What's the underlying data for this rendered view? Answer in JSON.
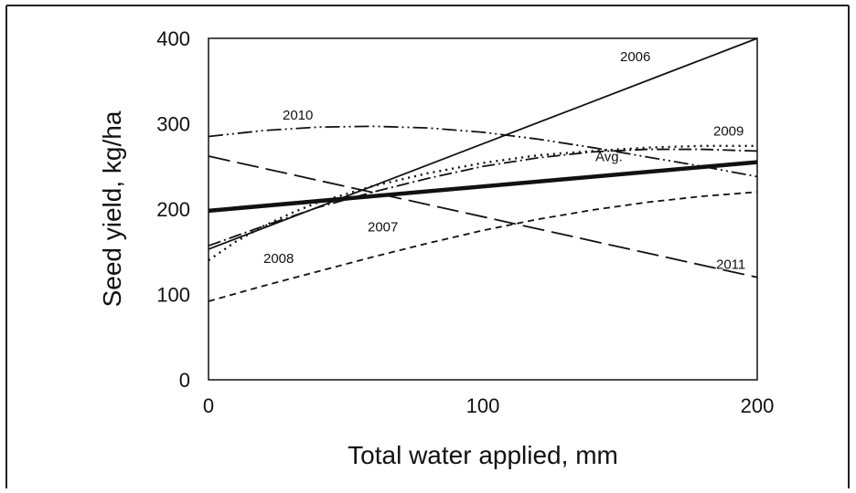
{
  "chart_data": {
    "type": "line",
    "title": "",
    "xlabel": "Total water applied, mm",
    "ylabel": "Seed yield, kg/ha",
    "xlim": [
      0,
      200
    ],
    "ylim": [
      0,
      400
    ],
    "xticks": [
      0,
      100,
      200
    ],
    "yticks": [
      0,
      100,
      200,
      300,
      400
    ],
    "grid": false,
    "legend": "none (series labeled inline)",
    "series": [
      {
        "name": "2006",
        "style": "solid",
        "x": [
          0,
          200
        ],
        "y": [
          153,
          400
        ],
        "label_at": [
          150,
          373
        ]
      },
      {
        "name": "2007",
        "style": "short-dash",
        "x": [
          0,
          20,
          40,
          60,
          80,
          100,
          120,
          140,
          160,
          180,
          200
        ],
        "y": [
          92,
          110,
          127,
          144,
          160,
          175,
          188,
          199,
          208,
          215,
          220
        ],
        "label_at": [
          58,
          174
        ]
      },
      {
        "name": "2008",
        "style": "dotted",
        "x": [
          0,
          10,
          20,
          30,
          40,
          60,
          80,
          100,
          120,
          140,
          160,
          180,
          200
        ],
        "y": [
          140,
          162,
          180,
          195,
          208,
          227,
          242,
          254,
          263,
          268,
          272,
          274,
          274
        ],
        "label_at": [
          20,
          137
        ]
      },
      {
        "name": "2009",
        "style": "dash-dot",
        "x": [
          0,
          20,
          40,
          60,
          80,
          100,
          120,
          140,
          160,
          180,
          200
        ],
        "y": [
          157,
          180,
          202,
          220,
          236,
          250,
          260,
          267,
          270,
          270,
          268
        ],
        "label_at": [
          184,
          286
        ]
      },
      {
        "name": "2010",
        "style": "dash-dot-dot",
        "x": [
          0,
          20,
          40,
          60,
          80,
          100,
          120,
          140,
          160,
          180,
          200
        ],
        "y": [
          285,
          292,
          296,
          297,
          295,
          290,
          282,
          272,
          261,
          250,
          238
        ],
        "label_at": [
          27,
          305
        ]
      },
      {
        "name": "2011",
        "style": "long-dash",
        "x": [
          0,
          200
        ],
        "y": [
          262,
          120
        ],
        "label_at": [
          185,
          130
        ]
      },
      {
        "name": "Avg.",
        "style": "thick-solid",
        "x": [
          0,
          200
        ],
        "y": [
          198,
          255
        ],
        "label_at": [
          141,
          256
        ]
      }
    ]
  }
}
